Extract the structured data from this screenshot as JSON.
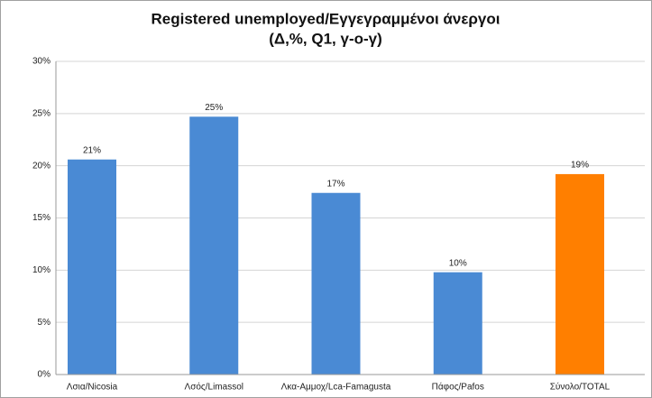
{
  "chart_data": {
    "type": "bar",
    "title": "Registered unemployed/Εγγεγραμμένοι άνεργοι",
    "subtitle": "(Δ,%, Q1, γ-ο-γ)",
    "categories": [
      "Λσια/Nicosia",
      "Λσός/Limassol",
      "Λκα-Αμμοχ/Lca-Famagusta",
      "Πάφος/Pafos",
      "Σύνολο/TOTAL"
    ],
    "values": [
      20.6,
      24.7,
      17.4,
      9.8,
      19.2
    ],
    "value_labels": [
      "21%",
      "25%",
      "17%",
      "10%",
      "19%"
    ],
    "colors": [
      "#4a8ad4",
      "#4a8ad4",
      "#4a8ad4",
      "#4a8ad4",
      "#ff7f00"
    ],
    "ylim": [
      0,
      30
    ],
    "yticks": [
      {
        "value": 0,
        "label": "0%"
      },
      {
        "value": 5,
        "label": "5%"
      },
      {
        "value": 10,
        "label": "10%"
      },
      {
        "value": 15,
        "label": "15%"
      },
      {
        "value": 20,
        "label": "20%"
      },
      {
        "value": 25,
        "label": "25%"
      },
      {
        "value": 30,
        "label": "30%"
      }
    ],
    "grid": true
  }
}
